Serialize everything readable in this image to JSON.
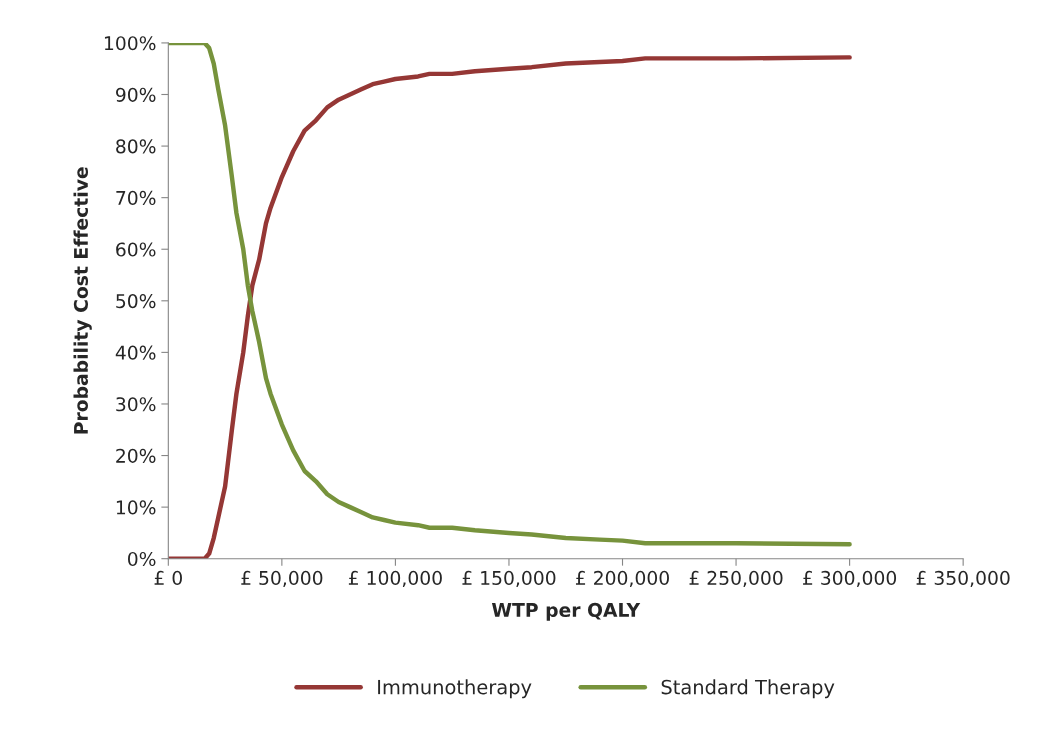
{
  "chart_data": {
    "type": "line",
    "xlabel": "WTP per QALY",
    "ylabel": "Probability Cost Effective",
    "xlim": [
      0,
      350000
    ],
    "xticks": [
      {
        "value": 0,
        "label": "£ 0"
      },
      {
        "value": 50000,
        "label": "£ 50,000"
      },
      {
        "value": 100000,
        "label": "£ 100,000"
      },
      {
        "value": 150000,
        "label": "£ 150,000"
      },
      {
        "value": 200000,
        "label": "£ 200,000"
      },
      {
        "value": 250000,
        "label": "£ 250,000"
      },
      {
        "value": 300000,
        "label": "£ 300,000"
      },
      {
        "value": 350000,
        "label": "£ 350,000"
      }
    ],
    "ylim": [
      0,
      100
    ],
    "yticks": [
      {
        "value": 0,
        "label": "0%"
      },
      {
        "value": 10,
        "label": "10%"
      },
      {
        "value": 20,
        "label": "20%"
      },
      {
        "value": 30,
        "label": "30%"
      },
      {
        "value": 40,
        "label": "40%"
      },
      {
        "value": 50,
        "label": "50%"
      },
      {
        "value": 60,
        "label": "60%"
      },
      {
        "value": 70,
        "label": "70%"
      },
      {
        "value": 80,
        "label": "80%"
      },
      {
        "value": 90,
        "label": "90%"
      },
      {
        "value": 100,
        "label": "100%"
      }
    ],
    "x": [
      0,
      10000,
      16000,
      18000,
      20000,
      22000,
      25000,
      28000,
      30000,
      33000,
      35000,
      37000,
      40000,
      43000,
      45000,
      50000,
      55000,
      60000,
      65000,
      70000,
      75000,
      80000,
      85000,
      90000,
      95000,
      100000,
      110000,
      115000,
      125000,
      135000,
      150000,
      160000,
      175000,
      190000,
      200000,
      210000,
      250000,
      300000
    ],
    "series": [
      {
        "name": "Immunotherapy",
        "color": "#953735",
        "values": [
          0,
          0,
          0,
          1,
          4,
          8,
          14,
          25,
          32,
          40,
          47,
          53,
          58,
          65,
          68,
          74,
          79,
          83,
          85,
          87.5,
          89,
          90,
          91,
          92,
          92.5,
          93,
          93.5,
          94,
          94,
          94.5,
          95,
          95.3,
          96,
          96.3,
          96.5,
          97,
          97,
          97.2
        ]
      },
      {
        "name": "Standard Therapy",
        "color": "#77933c",
        "values": [
          100,
          100,
          100,
          99,
          96,
          91,
          84,
          74,
          67,
          60,
          53,
          48,
          42,
          35,
          32,
          26,
          21,
          17,
          15,
          12.5,
          11,
          10,
          9,
          8,
          7.5,
          7,
          6.5,
          6,
          6,
          5.5,
          5,
          4.7,
          4,
          3.7,
          3.5,
          3,
          3,
          2.8
        ]
      }
    ],
    "legend": "bottom",
    "grid": false,
    "marker": "none",
    "line_style": "solid"
  }
}
